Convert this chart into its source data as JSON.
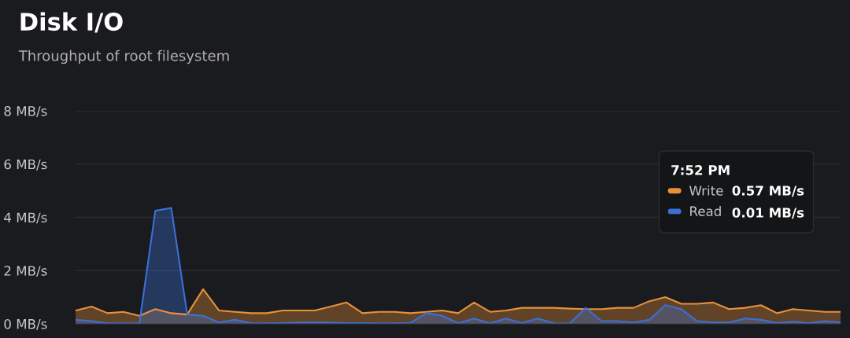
{
  "chart_data": {
    "type": "area",
    "title": "Disk I/O",
    "subtitle": "Throughput of root filesystem",
    "categories": [
      null,
      null,
      null,
      null,
      null,
      null,
      null,
      null,
      null,
      null,
      null,
      null,
      null,
      null,
      null,
      null,
      null,
      null,
      null,
      null,
      null,
      null,
      null,
      null,
      null,
      null,
      null,
      null,
      null,
      null,
      null,
      null,
      null,
      null,
      null,
      null,
      null,
      null,
      null,
      null,
      null,
      null,
      null,
      null,
      null,
      null,
      null,
      null,
      null
    ],
    "series": [
      {
        "name": "Write",
        "color": "#e8913a",
        "values": [
          0.5,
          0.65,
          0.4,
          0.45,
          0.3,
          0.55,
          0.4,
          0.35,
          1.3,
          0.5,
          0.45,
          0.4,
          0.4,
          0.5,
          0.5,
          0.5,
          0.65,
          0.8,
          0.4,
          0.45,
          0.45,
          0.4,
          0.45,
          0.5,
          0.4,
          0.8,
          0.45,
          0.5,
          0.6,
          0.6,
          0.6,
          0.57,
          0.55,
          0.55,
          0.6,
          0.6,
          0.85,
          1.0,
          0.75,
          0.75,
          0.8,
          0.55,
          0.6,
          0.7,
          0.4,
          0.55,
          0.5,
          0.45,
          0.45
        ]
      },
      {
        "name": "Read",
        "color": "#3b6fd8",
        "values": [
          0.15,
          0.1,
          0.02,
          0.02,
          0.02,
          4.25,
          4.35,
          0.35,
          0.3,
          0.05,
          0.15,
          0.03,
          0.02,
          0.03,
          0.05,
          0.05,
          0.05,
          0.03,
          0.03,
          0.02,
          0.02,
          0.03,
          0.4,
          0.3,
          0.02,
          0.2,
          0.02,
          0.2,
          0.03,
          0.2,
          0.02,
          0.01,
          0.6,
          0.1,
          0.1,
          0.05,
          0.15,
          0.7,
          0.55,
          0.1,
          0.05,
          0.05,
          0.2,
          0.15,
          0.03,
          0.08,
          0.03,
          0.1,
          0.05
        ]
      }
    ],
    "ylim": [
      0,
      8
    ],
    "yticks": [
      {
        "value": 0,
        "label": "0 MB/s"
      },
      {
        "value": 2,
        "label": "2 MB/s"
      },
      {
        "value": 4,
        "label": "4 MB/s"
      },
      {
        "value": 6,
        "label": "6 MB/s"
      },
      {
        "value": 8,
        "label": "8 MB/s"
      }
    ],
    "grid": "y",
    "legend": "right",
    "legend_title": "7:52 PM",
    "annotations": [
      "0.57 MB/s",
      "0.01 MB/s"
    ]
  }
}
